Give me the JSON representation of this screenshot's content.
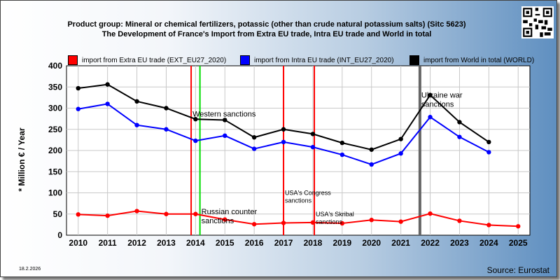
{
  "chart_data": {
    "type": "line",
    "title": "Product group: Mineral or chemical fertilizers, potassic (other than crude natural potassium salts) (Sitc 5623)",
    "subtitle": "The Development of France's Import from Extra EU trade, Intra EU trade and World in total",
    "ylabel": "* Million € / Year",
    "xlabel": "",
    "ylim": [
      0,
      400
    ],
    "yticks": [
      0,
      50,
      100,
      150,
      200,
      250,
      300,
      350,
      400
    ],
    "xticks": [
      2010,
      2011,
      2012,
      2013,
      2014,
      2015,
      2016,
      2017,
      2018,
      2019,
      2020,
      2021,
      2022,
      2023,
      2024,
      2025
    ],
    "grid": true,
    "legend_position": "top",
    "series": [
      {
        "name": "import from Extra EU trade (EXT_EU27_2020)",
        "color": "#ff0000",
        "x": [
          2010,
          2011,
          2012,
          2013,
          2014,
          2015,
          2016,
          2017,
          2018,
          2019,
          2020,
          2021,
          2022,
          2023,
          2024,
          2025
        ],
        "values": [
          49,
          46,
          57,
          50,
          50,
          37,
          26,
          29,
          30,
          28,
          36,
          32,
          51,
          34,
          24,
          21
        ]
      },
      {
        "name": "import from Intra EU trade (INT_EU27_2020)",
        "color": "#0000ff",
        "x": [
          2010,
          2011,
          2012,
          2013,
          2014,
          2015,
          2016,
          2017,
          2018,
          2019,
          2020,
          2021,
          2022,
          2023,
          2024
        ],
        "values": [
          298,
          310,
          260,
          250,
          223,
          235,
          204,
          220,
          208,
          190,
          167,
          193,
          279,
          232,
          196
        ]
      },
      {
        "name": "import from World in total (WORLD)",
        "color": "#000000",
        "x": [
          2010,
          2011,
          2012,
          2013,
          2014,
          2015,
          2016,
          2017,
          2018,
          2019,
          2020,
          2021,
          2022,
          2023,
          2024
        ],
        "values": [
          347,
          356,
          316,
          300,
          274,
          272,
          231,
          250,
          239,
          218,
          202,
          227,
          331,
          267,
          220
        ]
      }
    ],
    "events": [
      {
        "x": 2013.85,
        "color": "#ff0000",
        "label": "",
        "label_value": null
      },
      {
        "x": 2014.15,
        "color": "#00dd00",
        "label": "Russian counter sanctions",
        "label_value": 50
      },
      {
        "x": 2013.85,
        "color": "#ff0000",
        "label": "Western sanctions",
        "label_value": 280
      },
      {
        "x": 2017.0,
        "color": "#ff0000",
        "label": "USA's Congress sanctions",
        "label_value": 95
      },
      {
        "x": 2018.05,
        "color": "#ff0000",
        "label": "USA's Skribal sanctions",
        "label_value": 45
      },
      {
        "x": 2021.65,
        "color": "#666666",
        "label": "Ukraine war sanctions",
        "label_value": 325
      }
    ]
  },
  "footer": {
    "date": "18.2.2026",
    "source": "Source: Eurostat"
  }
}
